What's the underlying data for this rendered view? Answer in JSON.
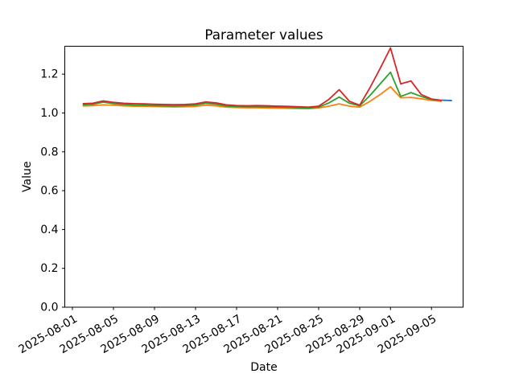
{
  "title": "Parameter values",
  "chart_data": {
    "type": "line",
    "title": "Parameter values",
    "xlabel": "Date",
    "ylabel": "Value",
    "grid": false,
    "legend": null,
    "ylim": [
      0.0,
      1.344
    ],
    "xlim_dates": [
      "2025-07-31",
      "2025-09-08"
    ],
    "y_ticks": [
      0.0,
      0.2,
      0.4,
      0.6,
      0.8,
      1.0,
      1.2
    ],
    "y_tick_labels": [
      "0.0",
      "0.2",
      "0.4",
      "0.6",
      "0.8",
      "1.0",
      "1.2"
    ],
    "x_ticks": [
      "2025-08-01",
      "2025-08-05",
      "2025-08-09",
      "2025-08-13",
      "2025-08-17",
      "2025-08-21",
      "2025-08-25",
      "2025-08-29",
      "2025-09-01",
      "2025-09-05"
    ],
    "colors": {
      "red": "#d62728",
      "green": "#2ca02c",
      "orange": "#ff7f0e",
      "blue": "#1f77b4"
    },
    "x_dates": [
      "2025-08-02",
      "2025-08-03",
      "2025-08-04",
      "2025-08-05",
      "2025-08-06",
      "2025-08-07",
      "2025-08-08",
      "2025-08-09",
      "2025-08-10",
      "2025-08-11",
      "2025-08-12",
      "2025-08-13",
      "2025-08-14",
      "2025-08-15",
      "2025-08-16",
      "2025-08-17",
      "2025-08-18",
      "2025-08-19",
      "2025-08-20",
      "2025-08-21",
      "2025-08-22",
      "2025-08-23",
      "2025-08-24",
      "2025-08-25",
      "2025-08-26",
      "2025-08-27",
      "2025-08-28",
      "2025-08-29",
      "2025-08-30",
      "2025-08-31",
      "2025-09-01",
      "2025-09-02",
      "2025-09-03",
      "2025-09-04",
      "2025-09-05",
      "2025-09-06"
    ],
    "series": [
      {
        "name": "orange",
        "color": "#ff7f0e",
        "dates": [
          "2025-08-02",
          "2025-08-03",
          "2025-08-04",
          "2025-08-05",
          "2025-08-06",
          "2025-08-07",
          "2025-08-08",
          "2025-08-09",
          "2025-08-10",
          "2025-08-11",
          "2025-08-12",
          "2025-08-13",
          "2025-08-14",
          "2025-08-15",
          "2025-08-16",
          "2025-08-17",
          "2025-08-18",
          "2025-08-19",
          "2025-08-20",
          "2025-08-21",
          "2025-08-22",
          "2025-08-23",
          "2025-08-24",
          "2025-08-25",
          "2025-08-26",
          "2025-08-27",
          "2025-08-28",
          "2025-08-29",
          "2025-08-30",
          "2025-08-31",
          "2025-09-01",
          "2025-09-02",
          "2025-09-03",
          "2025-09-04",
          "2025-09-05",
          "2025-09-06"
        ],
        "values": [
          1.036,
          1.038,
          1.042,
          1.04,
          1.037,
          1.035,
          1.035,
          1.033,
          1.032,
          1.031,
          1.032,
          1.034,
          1.04,
          1.037,
          1.03,
          1.028,
          1.027,
          1.027,
          1.026,
          1.025,
          1.024,
          1.023,
          1.022,
          1.026,
          1.035,
          1.047,
          1.035,
          1.03,
          1.06,
          1.095,
          1.135,
          1.078,
          1.08,
          1.073,
          1.065,
          1.06
        ]
      },
      {
        "name": "green",
        "color": "#2ca02c",
        "dates": [
          "2025-08-02",
          "2025-08-03",
          "2025-08-04",
          "2025-08-05",
          "2025-08-06",
          "2025-08-07",
          "2025-08-08",
          "2025-08-09",
          "2025-08-10",
          "2025-08-11",
          "2025-08-12",
          "2025-08-13",
          "2025-08-14",
          "2025-08-15",
          "2025-08-16",
          "2025-08-17",
          "2025-08-18",
          "2025-08-19",
          "2025-08-20",
          "2025-08-21",
          "2025-08-22",
          "2025-08-23",
          "2025-08-24",
          "2025-08-25",
          "2025-08-26",
          "2025-08-27",
          "2025-08-28",
          "2025-08-29",
          "2025-08-30",
          "2025-08-31",
          "2025-09-01",
          "2025-09-02",
          "2025-09-03",
          "2025-09-04",
          "2025-09-05",
          "2025-09-06"
        ],
        "values": [
          1.042,
          1.045,
          1.056,
          1.048,
          1.044,
          1.041,
          1.04,
          1.038,
          1.037,
          1.036,
          1.038,
          1.041,
          1.05,
          1.045,
          1.036,
          1.033,
          1.032,
          1.032,
          1.031,
          1.03,
          1.029,
          1.027,
          1.026,
          1.03,
          1.052,
          1.082,
          1.05,
          1.037,
          1.09,
          1.15,
          1.21,
          1.085,
          1.105,
          1.085,
          1.07,
          1.064
        ]
      },
      {
        "name": "red",
        "color": "#d62728",
        "dates": [
          "2025-08-02",
          "2025-08-03",
          "2025-08-04",
          "2025-08-05",
          "2025-08-06",
          "2025-08-07",
          "2025-08-08",
          "2025-08-09",
          "2025-08-10",
          "2025-08-11",
          "2025-08-12",
          "2025-08-13",
          "2025-08-14",
          "2025-08-15",
          "2025-08-16",
          "2025-08-17",
          "2025-08-18",
          "2025-08-19",
          "2025-08-20",
          "2025-08-21",
          "2025-08-22",
          "2025-08-23",
          "2025-08-24",
          "2025-08-25",
          "2025-08-26",
          "2025-08-27",
          "2025-08-28",
          "2025-08-29",
          "2025-08-30",
          "2025-08-31",
          "2025-09-01",
          "2025-09-02",
          "2025-09-03",
          "2025-09-04",
          "2025-09-05",
          "2025-09-06"
        ],
        "values": [
          1.048,
          1.05,
          1.062,
          1.055,
          1.05,
          1.048,
          1.047,
          1.045,
          1.044,
          1.043,
          1.044,
          1.047,
          1.057,
          1.052,
          1.042,
          1.038,
          1.037,
          1.038,
          1.037,
          1.035,
          1.034,
          1.032,
          1.03,
          1.035,
          1.07,
          1.12,
          1.06,
          1.04,
          1.13,
          1.23,
          1.335,
          1.15,
          1.165,
          1.095,
          1.072,
          1.065
        ]
      },
      {
        "name": "blue",
        "color": "#1f77b4",
        "dates": [
          "2025-09-06",
          "2025-09-07"
        ],
        "values": [
          1.066,
          1.064
        ]
      }
    ]
  }
}
